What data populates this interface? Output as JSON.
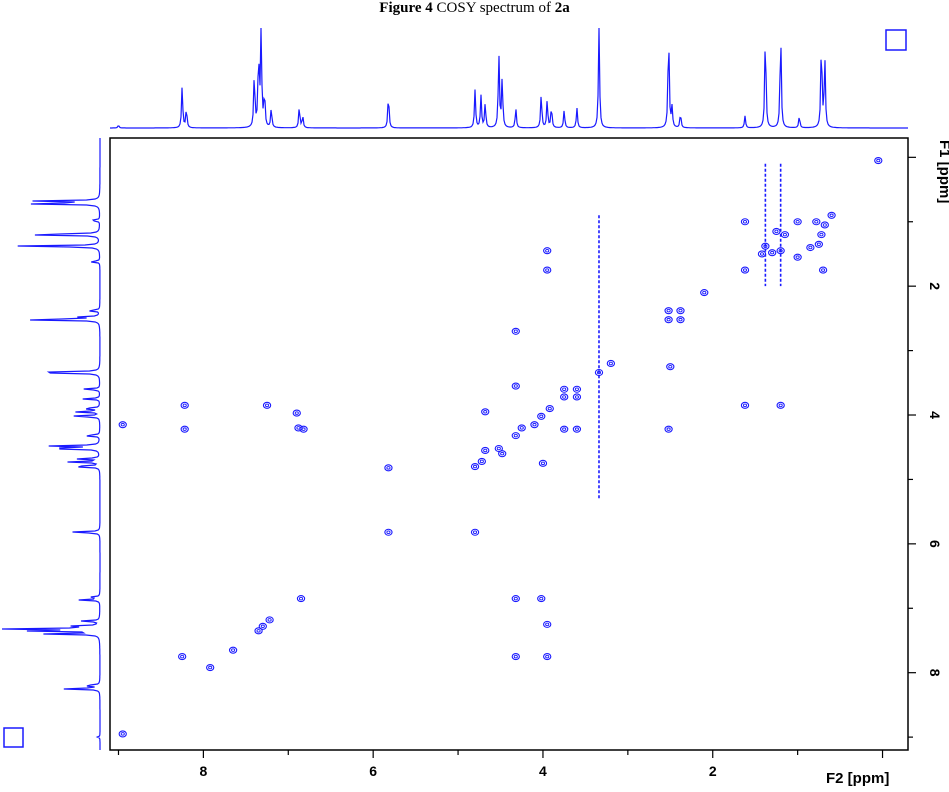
{
  "caption": {
    "figure_label": "Figure 4",
    "text": " COSY spectrum of ",
    "compound": "2a"
  },
  "chart_data": {
    "type": "scatter",
    "title": "",
    "xlabel": "F2 [ppm]",
    "ylabel": "F1 [ppm]",
    "xlim": [
      9.1,
      -0.3
    ],
    "ylim": [
      -0.3,
      9.2
    ],
    "x_ticks": [
      8,
      6,
      4,
      2
    ],
    "y_ticks": [
      2,
      4,
      6,
      8
    ],
    "grid": false,
    "contour_color": "#1a1aff",
    "proton_spectrum_peaks": [
      {
        "ppm": 9.0,
        "intensity": 0.03
      },
      {
        "ppm": 8.25,
        "intensity": 0.42
      },
      {
        "ppm": 8.2,
        "intensity": 0.2
      },
      {
        "ppm": 7.4,
        "intensity": 0.55
      },
      {
        "ppm": 7.35,
        "intensity": 0.75
      },
      {
        "ppm": 7.32,
        "intensity": 1.0
      },
      {
        "ppm": 7.28,
        "intensity": 0.35
      },
      {
        "ppm": 7.2,
        "intensity": 0.2
      },
      {
        "ppm": 6.87,
        "intensity": 0.22
      },
      {
        "ppm": 6.83,
        "intensity": 0.12
      },
      {
        "ppm": 5.82,
        "intensity": 0.35
      },
      {
        "ppm": 4.8,
        "intensity": 0.38
      },
      {
        "ppm": 4.73,
        "intensity": 0.32
      },
      {
        "ppm": 4.68,
        "intensity": 0.25
      },
      {
        "ppm": 4.52,
        "intensity": 0.75
      },
      {
        "ppm": 4.48,
        "intensity": 0.5
      },
      {
        "ppm": 4.32,
        "intensity": 0.2
      },
      {
        "ppm": 4.02,
        "intensity": 0.35
      },
      {
        "ppm": 3.95,
        "intensity": 0.28
      },
      {
        "ppm": 3.9,
        "intensity": 0.22
      },
      {
        "ppm": 3.75,
        "intensity": 0.18
      },
      {
        "ppm": 3.6,
        "intensity": 0.2
      },
      {
        "ppm": 3.34,
        "intensity": 1.0
      },
      {
        "ppm": 2.52,
        "intensity": 1.0
      },
      {
        "ppm": 2.48,
        "intensity": 0.2
      },
      {
        "ppm": 2.38,
        "intensity": 0.15
      },
      {
        "ppm": 1.62,
        "intensity": 0.12
      },
      {
        "ppm": 1.38,
        "intensity": 1.0
      },
      {
        "ppm": 1.2,
        "intensity": 1.0
      },
      {
        "ppm": 0.98,
        "intensity": 0.12
      },
      {
        "ppm": 0.72,
        "intensity": 0.9
      },
      {
        "ppm": 0.68,
        "intensity": 0.7
      }
    ],
    "cross_peaks": [
      {
        "x": 8.25,
        "y": 7.75
      },
      {
        "x": 8.22,
        "y": 3.85
      },
      {
        "x": 8.22,
        "y": 4.22
      },
      {
        "x": 7.35,
        "y": 7.35
      },
      {
        "x": 7.3,
        "y": 7.28
      },
      {
        "x": 7.22,
        "y": 7.18
      },
      {
        "x": 7.25,
        "y": 3.85
      },
      {
        "x": 6.85,
        "y": 6.85
      },
      {
        "x": 6.82,
        "y": 4.22
      },
      {
        "x": 6.88,
        "y": 4.2
      },
      {
        "x": 6.9,
        "y": 3.97
      },
      {
        "x": 7.65,
        "y": 7.65
      },
      {
        "x": 7.92,
        "y": 7.92
      },
      {
        "x": 8.95,
        "y": 8.95
      },
      {
        "x": 8.95,
        "y": 4.15
      },
      {
        "x": 5.82,
        "y": 5.82
      },
      {
        "x": 5.82,
        "y": 4.82
      },
      {
        "x": 4.8,
        "y": 5.82
      },
      {
        "x": 4.8,
        "y": 4.8
      },
      {
        "x": 4.72,
        "y": 4.72
      },
      {
        "x": 4.68,
        "y": 4.55
      },
      {
        "x": 4.52,
        "y": 4.52
      },
      {
        "x": 4.48,
        "y": 4.6
      },
      {
        "x": 4.68,
        "y": 3.95
      },
      {
        "x": 4.32,
        "y": 4.32
      },
      {
        "x": 4.32,
        "y": 3.55
      },
      {
        "x": 4.32,
        "y": 2.7
      },
      {
        "x": 4.32,
        "y": 6.85
      },
      {
        "x": 4.32,
        "y": 7.75
      },
      {
        "x": 4.02,
        "y": 4.02
      },
      {
        "x": 4.02,
        "y": 6.85
      },
      {
        "x": 3.95,
        "y": 1.45
      },
      {
        "x": 3.95,
        "y": 1.75
      },
      {
        "x": 3.95,
        "y": 7.25
      },
      {
        "x": 3.95,
        "y": 7.75
      },
      {
        "x": 4.0,
        "y": 4.75
      },
      {
        "x": 3.92,
        "y": 3.9
      },
      {
        "x": 4.1,
        "y": 4.15
      },
      {
        "x": 4.25,
        "y": 4.2
      },
      {
        "x": 3.75,
        "y": 3.6
      },
      {
        "x": 3.75,
        "y": 3.72
      },
      {
        "x": 3.75,
        "y": 4.22
      },
      {
        "x": 3.6,
        "y": 3.6
      },
      {
        "x": 3.6,
        "y": 3.72
      },
      {
        "x": 3.6,
        "y": 4.22
      },
      {
        "x": 3.34,
        "y": 3.34
      },
      {
        "x": 3.2,
        "y": 3.2
      },
      {
        "x": 2.52,
        "y": 2.52
      },
      {
        "x": 2.52,
        "y": 2.38
      },
      {
        "x": 2.38,
        "y": 2.38
      },
      {
        "x": 2.38,
        "y": 2.52
      },
      {
        "x": 2.52,
        "y": 4.22
      },
      {
        "x": 2.5,
        "y": 3.25
      },
      {
        "x": 2.1,
        "y": 2.1
      },
      {
        "x": 1.62,
        "y": 1.0
      },
      {
        "x": 1.62,
        "y": 1.75
      },
      {
        "x": 1.62,
        "y": 3.85
      },
      {
        "x": 1.38,
        "y": 1.38
      },
      {
        "x": 1.42,
        "y": 1.5
      },
      {
        "x": 1.3,
        "y": 1.48
      },
      {
        "x": 1.2,
        "y": 1.45
      },
      {
        "x": 1.2,
        "y": 3.85
      },
      {
        "x": 1.15,
        "y": 1.2
      },
      {
        "x": 1.25,
        "y": 1.15
      },
      {
        "x": 1.0,
        "y": 1.0
      },
      {
        "x": 1.0,
        "y": 1.55
      },
      {
        "x": 0.85,
        "y": 1.4
      },
      {
        "x": 0.78,
        "y": 1.0
      },
      {
        "x": 0.75,
        "y": 1.35
      },
      {
        "x": 0.72,
        "y": 1.2
      },
      {
        "x": 0.7,
        "y": 1.75
      },
      {
        "x": 0.6,
        "y": 0.9
      },
      {
        "x": 0.68,
        "y": 1.05
      },
      {
        "x": 0.05,
        "y": 0.05
      }
    ],
    "t1_noise_x": [
      3.34,
      1.38,
      1.2
    ]
  }
}
